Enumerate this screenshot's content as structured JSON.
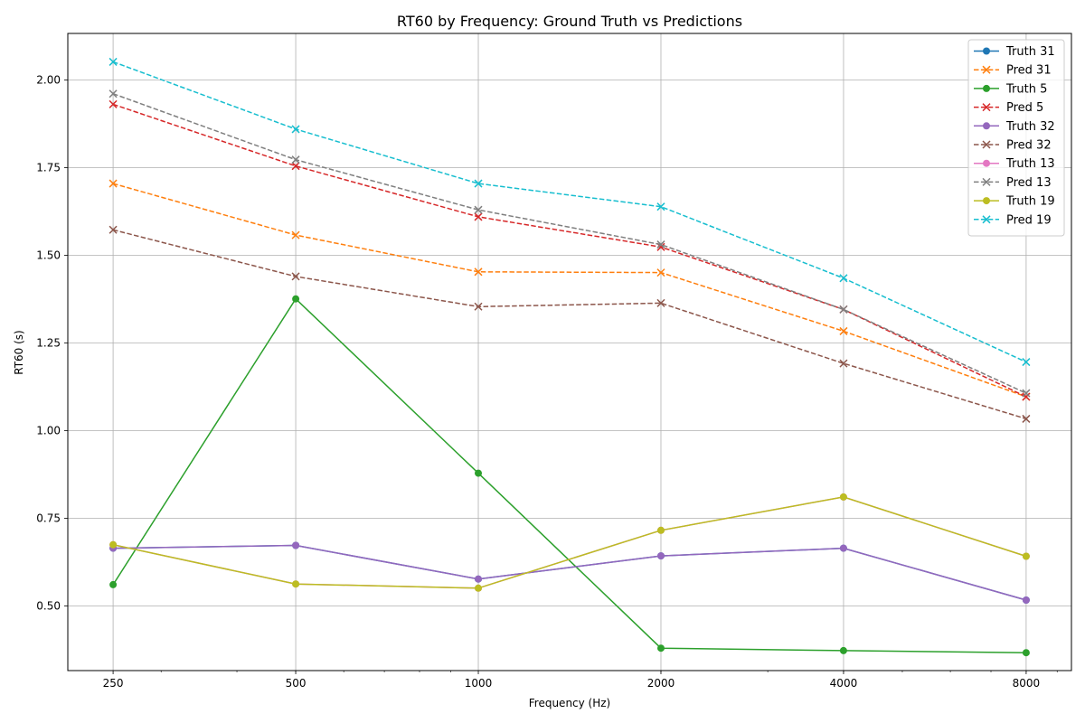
{
  "chart_data": {
    "type": "line",
    "title": "RT60 by Frequency: Ground Truth vs Predictions",
    "xlabel": "Frequency (Hz)",
    "ylabel": "RT60 (s)",
    "x_scale": "log",
    "x": [
      250,
      500,
      1000,
      2000,
      4000,
      8000
    ],
    "x_tick_labels": [
      "250",
      "500",
      "1000",
      "2000",
      "4000",
      "8000"
    ],
    "y_ticks": [
      "0.50",
      "0.75",
      "1.00",
      "1.25",
      "1.50",
      "1.75",
      "2.00"
    ],
    "ylim": [
      0.316,
      2.133
    ],
    "grid": true,
    "legend_position": "top-right",
    "series": [
      {
        "name": "Truth 31",
        "color": "#1f77b4",
        "style": "solid",
        "marker": "circle",
        "values": [
          0.665,
          0.673,
          0.577,
          0.643,
          0.665,
          0.517
        ]
      },
      {
        "name": "Pred 31",
        "color": "#ff7f0e",
        "style": "dashed",
        "marker": "x",
        "values": [
          1.705,
          1.558,
          1.453,
          1.451,
          1.284,
          1.097
        ]
      },
      {
        "name": "Truth 5",
        "color": "#2ca02c",
        "style": "solid",
        "marker": "circle",
        "values": [
          0.561,
          1.376,
          0.879,
          0.38,
          0.373,
          0.367
        ]
      },
      {
        "name": "Pred 5",
        "color": "#d62728",
        "style": "dashed",
        "marker": "x",
        "values": [
          1.931,
          1.755,
          1.61,
          1.524,
          1.346,
          1.097
        ]
      },
      {
        "name": "Truth 32",
        "color": "#9467bd",
        "style": "solid",
        "marker": "circle",
        "values": [
          0.665,
          0.673,
          0.577,
          0.643,
          0.665,
          0.517
        ]
      },
      {
        "name": "Pred 32",
        "color": "#8c564b",
        "style": "dashed",
        "marker": "x",
        "values": [
          1.573,
          1.44,
          1.354,
          1.364,
          1.192,
          1.034
        ]
      },
      {
        "name": "Truth 13",
        "color": "#e377c2",
        "style": "solid",
        "marker": "circle",
        "values": [
          0.675,
          0.563,
          0.551,
          0.716,
          0.811,
          0.642
        ]
      },
      {
        "name": "Pred 13",
        "color": "#7f7f7f",
        "style": "dashed",
        "marker": "x",
        "values": [
          1.961,
          1.773,
          1.63,
          1.531,
          1.346,
          1.107
        ]
      },
      {
        "name": "Truth 19",
        "color": "#bcbd22",
        "style": "solid",
        "marker": "circle",
        "values": [
          0.675,
          0.563,
          0.551,
          0.716,
          0.811,
          0.642
        ]
      },
      {
        "name": "Pred 19",
        "color": "#17becf",
        "style": "dashed",
        "marker": "x",
        "values": [
          2.052,
          1.86,
          1.705,
          1.639,
          1.435,
          1.196
        ]
      }
    ]
  }
}
